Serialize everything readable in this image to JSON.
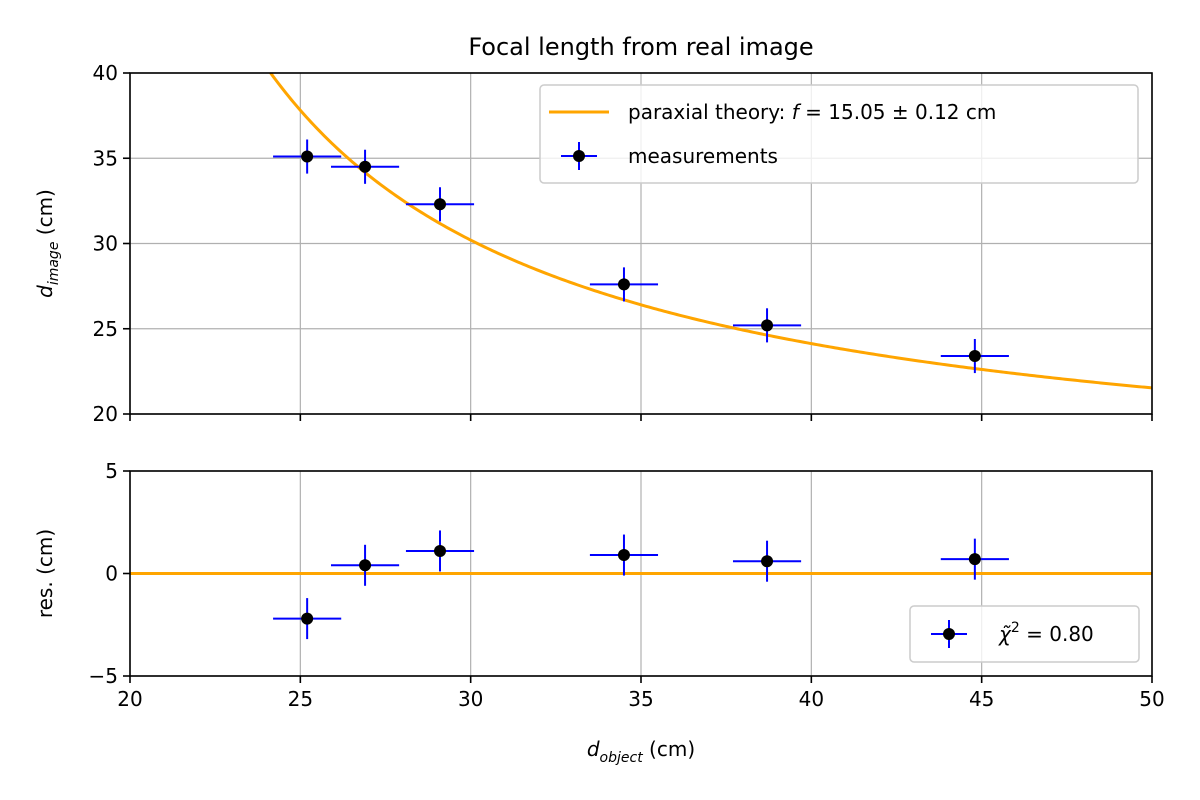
{
  "chart_data": [
    {
      "type": "scatter",
      "title": "Focal length from real image",
      "ylabel": {
        "main": "d",
        "sub": "image",
        "unit": " (cm)"
      },
      "xlim": [
        20,
        50
      ],
      "ylim": [
        20,
        40
      ],
      "xticks": [
        20,
        25,
        30,
        35,
        40,
        45,
        50
      ],
      "yticks": [
        20,
        25,
        30,
        35,
        40
      ],
      "grid": true,
      "legend_position": "top-right",
      "series": [
        {
          "name": "measurements",
          "kind": "errorbar",
          "color": "#000000",
          "errorbar_color": "#0000ff",
          "x": [
            25.2,
            26.9,
            29.1,
            34.5,
            38.7,
            44.8
          ],
          "y": [
            35.1,
            34.5,
            32.3,
            27.6,
            25.2,
            23.4
          ],
          "xerr": [
            1.0,
            1.0,
            1.0,
            1.0,
            1.0,
            1.0
          ],
          "yerr": [
            1.0,
            1.0,
            1.0,
            1.0,
            1.0,
            1.0
          ]
        },
        {
          "name": "paraxial theory: f = 15.05 ± 0.12 cm",
          "legend": {
            "prefix": "paraxial theory: ",
            "var": "f",
            "suffix": " = 15.05 ± 0.12 cm"
          },
          "kind": "line",
          "color": "#ffa500",
          "model": "1/(1/f - 1/x)",
          "f": 15.05
        }
      ]
    },
    {
      "type": "scatter",
      "xlabel": {
        "main": "d",
        "sub": "object",
        "unit": " (cm)"
      },
      "ylabel": "res. (cm)",
      "xlim": [
        20,
        50
      ],
      "ylim": [
        -5,
        5
      ],
      "xticks": [
        20,
        25,
        30,
        35,
        40,
        45,
        50
      ],
      "yticks": [
        -5,
        0,
        5
      ],
      "ytick_labels": [
        "−5",
        "0",
        "5"
      ],
      "grid": true,
      "legend_position": "bottom-right",
      "series": [
        {
          "name": "χ̃² = 0.80",
          "legend": {
            "var": "χ̃",
            "sup": "2",
            "suffix": " = 0.80"
          },
          "kind": "errorbar",
          "color": "#000000",
          "errorbar_color": "#0000ff",
          "x": [
            25.2,
            26.9,
            29.1,
            34.5,
            38.7,
            44.8
          ],
          "y": [
            -2.2,
            0.4,
            1.1,
            0.9,
            0.6,
            0.7
          ],
          "xerr": [
            1.0,
            1.0,
            1.0,
            1.0,
            1.0,
            1.0
          ],
          "yerr": [
            1.0,
            1.0,
            1.0,
            1.0,
            1.0,
            1.0
          ]
        },
        {
          "kind": "hline",
          "y": 0,
          "color": "#ffa500"
        }
      ]
    }
  ]
}
